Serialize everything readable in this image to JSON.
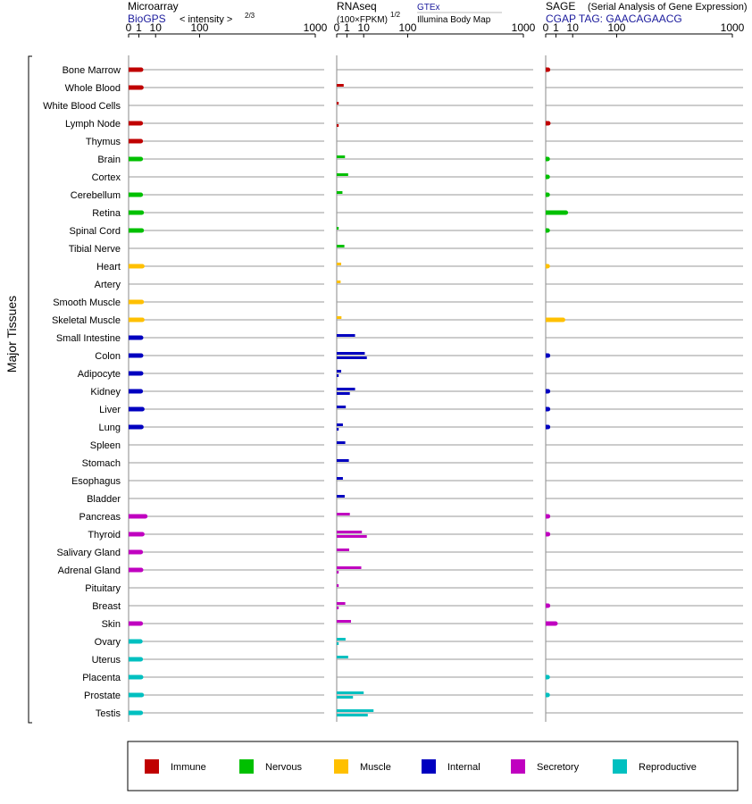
{
  "side_label": "Major Tissues",
  "panels": {
    "microarray": {
      "title": "Microarray",
      "source": "BioGPS",
      "scale_label": "< intensity >",
      "scale_exp": "2/3",
      "ticks": [
        "0",
        "1",
        "10",
        "100",
        "1000"
      ]
    },
    "rnaseq": {
      "title": "RNAseq",
      "scale_label": "(100×FPKM)",
      "scale_exp": "1/2",
      "source_top": "GTEx",
      "source_bottom": "Illumina Body Map",
      "ticks": [
        "0",
        "1",
        "10",
        "100",
        "1000"
      ]
    },
    "sage": {
      "title": "SAGE",
      "subtitle": "(Serial Analysis of Gene Expression)",
      "tag": "CGAP TAG: GAACAGAACG",
      "ticks": [
        "0",
        "1",
        "10",
        "100",
        "1000"
      ]
    }
  },
  "legend": [
    {
      "key": "immune",
      "label": "Immune",
      "color": "#c00000"
    },
    {
      "key": "nervous",
      "label": "Nervous",
      "color": "#00c000"
    },
    {
      "key": "muscle",
      "label": "Muscle",
      "color": "#ffc000"
    },
    {
      "key": "internal",
      "label": "Internal",
      "color": "#0000c0"
    },
    {
      "key": "secretory",
      "label": "Secretory",
      "color": "#c000c0"
    },
    {
      "key": "reproductive",
      "label": "Reproductive",
      "color": "#00c0c0"
    }
  ],
  "chart_data": {
    "type": "bar",
    "orientation": "horizontal",
    "axis_scale": "power (tick labels 0, 1, 10, 100, 1000)",
    "xlim": [
      0,
      1000
    ],
    "categories": [
      "Bone Marrow",
      "Whole Blood",
      "White Blood Cells",
      "Lymph Node",
      "Thymus",
      "Brain",
      "Cortex",
      "Cerebellum",
      "Retina",
      "Spinal Cord",
      "Tibial Nerve",
      "Heart",
      "Artery",
      "Smooth Muscle",
      "Skeletal Muscle",
      "Small Intestine",
      "Colon",
      "Adipocyte",
      "Kidney",
      "Liver",
      "Lung",
      "Spleen",
      "Stomach",
      "Esophagus",
      "Bladder",
      "Pancreas",
      "Thyroid",
      "Salivary Gland",
      "Adrenal Gland",
      "Pituitary",
      "Breast",
      "Skin",
      "Ovary",
      "Uterus",
      "Placenta",
      "Prostate",
      "Testis"
    ],
    "groups": [
      "immune",
      "immune",
      "immune",
      "immune",
      "immune",
      "nervous",
      "nervous",
      "nervous",
      "nervous",
      "nervous",
      "nervous",
      "muscle",
      "muscle",
      "muscle",
      "muscle",
      "internal",
      "internal",
      "internal",
      "internal",
      "internal",
      "internal",
      "internal",
      "internal",
      "internal",
      "internal",
      "secretory",
      "secretory",
      "secretory",
      "secretory",
      "secretory",
      "secretory",
      "secretory",
      "reproductive",
      "reproductive",
      "reproductive",
      "reproductive",
      "reproductive"
    ],
    "series": [
      {
        "name": "Microarray",
        "values": [
          1.6,
          1.7,
          null,
          1.5,
          1.5,
          1.5,
          null,
          1.5,
          1.8,
          1.8,
          null,
          2.0,
          null,
          1.8,
          2.0,
          1.6,
          1.6,
          1.6,
          1.5,
          2.0,
          1.7,
          null,
          null,
          null,
          null,
          3.2,
          2.0,
          1.5,
          1.6,
          null,
          null,
          1.5,
          1.4,
          1.5,
          1.6,
          1.8,
          1.5
        ]
      },
      {
        "name": "GTEx",
        "values": [
          null,
          0.4,
          0.02,
          null,
          null,
          0.6,
          1.3,
          0.25,
          null,
          0.02,
          0.5,
          0.14,
          0.1,
          null,
          0.16,
          4.0,
          11.0,
          0.14,
          4.0,
          0.75,
          0.3,
          0.65,
          1.5,
          0.3,
          0.55,
          1.8,
          8.5,
          1.6,
          8.0,
          0.02,
          0.65,
          2.2,
          0.7,
          1.3,
          null,
          10.0,
          21.0
        ]
      },
      {
        "name": "Illumina Body Map",
        "values": [
          null,
          null,
          null,
          0.02,
          null,
          null,
          null,
          null,
          null,
          null,
          null,
          null,
          null,
          null,
          null,
          null,
          13.0,
          0.02,
          1.8,
          null,
          0.02,
          null,
          null,
          null,
          null,
          null,
          13.0,
          null,
          0.02,
          null,
          0.02,
          null,
          0.02,
          null,
          null,
          3.0,
          14.0
        ]
      },
      {
        "name": "SAGE",
        "values": [
          0.03,
          null,
          null,
          0.04,
          null,
          0.02,
          0.02,
          0.02,
          5.0,
          0.02,
          null,
          0.02,
          null,
          null,
          3.5,
          null,
          0.03,
          null,
          0.03,
          0.03,
          0.03,
          null,
          null,
          null,
          null,
          0.03,
          0.03,
          null,
          null,
          null,
          0.03,
          0.9,
          null,
          null,
          0.02,
          0.02,
          null
        ]
      }
    ],
    "legend_position": "bottom",
    "grid": false
  }
}
